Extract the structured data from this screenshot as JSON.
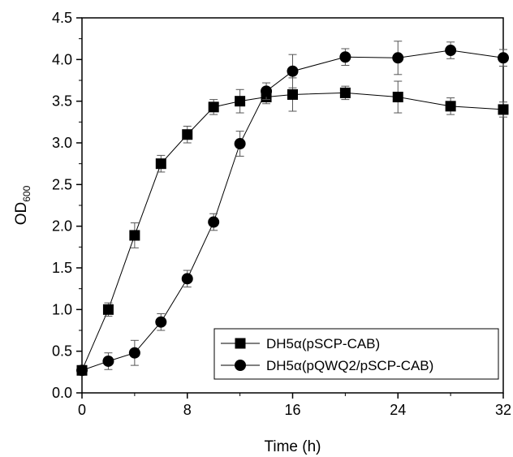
{
  "chart_data": {
    "type": "line",
    "xlabel": "Time (h)",
    "ylabel_main": "OD",
    "ylabel_sub": "600",
    "xlim": [
      0,
      32
    ],
    "ylim": [
      0,
      4.5
    ],
    "x_ticks": [
      0,
      8,
      16,
      24,
      32
    ],
    "x_tick_labels": [
      "0",
      "8",
      "16",
      "24",
      "32"
    ],
    "y_ticks": [
      0,
      0.5,
      1.0,
      1.5,
      2.0,
      2.5,
      3.0,
      3.5,
      4.0,
      4.5
    ],
    "y_tick_labels": [
      "0.0",
      "0.5",
      "1.0",
      "1.5",
      "2.0",
      "2.5",
      "3.0",
      "3.5",
      "4.0",
      "4.5"
    ],
    "grid": false,
    "legend_position": "bottom-right",
    "series": [
      {
        "name": "DH5α(pSCP-CAB)",
        "marker": "square",
        "color": "#000000",
        "x": [
          0,
          2,
          4,
          6,
          8,
          10,
          12,
          14,
          16,
          20,
          24,
          28,
          32
        ],
        "y": [
          0.27,
          1.0,
          1.89,
          2.75,
          3.1,
          3.43,
          3.5,
          3.55,
          3.58,
          3.6,
          3.55,
          3.44,
          3.4
        ],
        "err": [
          0.04,
          0.08,
          0.15,
          0.1,
          0.1,
          0.09,
          0.14,
          0.08,
          0.2,
          0.08,
          0.19,
          0.1,
          0.09
        ]
      },
      {
        "name": "DH5α(pQWQ2/pSCP-CAB)",
        "marker": "circle",
        "color": "#000000",
        "x": [
          0,
          2,
          4,
          6,
          8,
          10,
          12,
          14,
          16,
          20,
          24,
          28,
          32
        ],
        "y": [
          0.27,
          0.38,
          0.48,
          0.85,
          1.37,
          2.05,
          2.99,
          3.62,
          3.86,
          4.03,
          4.02,
          4.11,
          4.02
        ],
        "err": [
          0.04,
          0.1,
          0.15,
          0.1,
          0.1,
          0.1,
          0.15,
          0.1,
          0.2,
          0.1,
          0.2,
          0.1,
          0.1
        ]
      }
    ]
  }
}
